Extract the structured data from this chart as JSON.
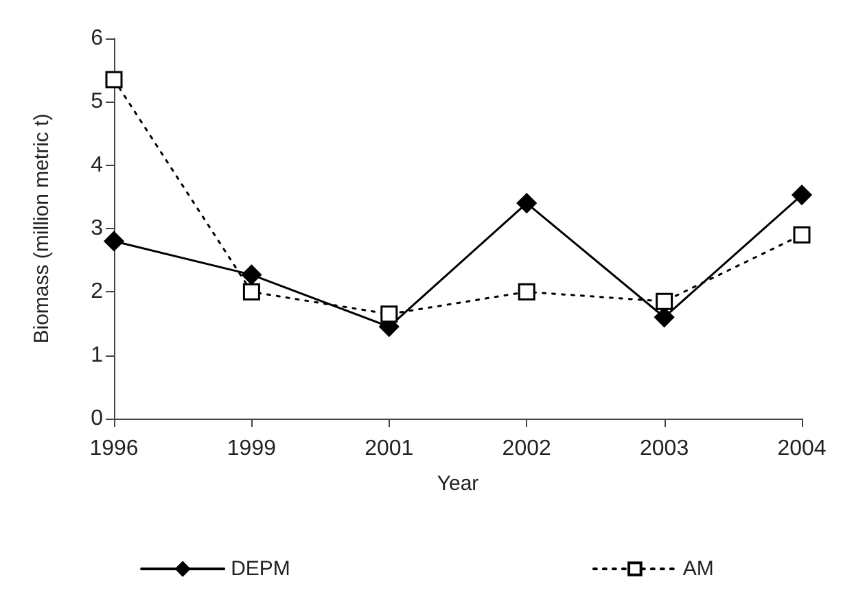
{
  "chart_data": {
    "type": "line",
    "xlabel": "Year",
    "ylabel": "Biomass (million metric t)",
    "categories": [
      "1996",
      "1999",
      "2001",
      "2002",
      "2003",
      "2004"
    ],
    "series": [
      {
        "name": "DEPM",
        "color": "#000000",
        "marker": "diamond",
        "line_style": "solid",
        "values": [
          2.8,
          2.27,
          1.45,
          3.4,
          1.6,
          3.53
        ]
      },
      {
        "name": "AM",
        "color": "#000000",
        "marker": "square",
        "line_style": "dotted",
        "values": [
          5.35,
          2.0,
          1.65,
          2.0,
          1.85,
          2.9
        ]
      }
    ],
    "ylim": [
      0,
      6
    ],
    "yticks": [
      0,
      1,
      2,
      3,
      4,
      5,
      6
    ],
    "grid": false,
    "legend": "bottom"
  }
}
